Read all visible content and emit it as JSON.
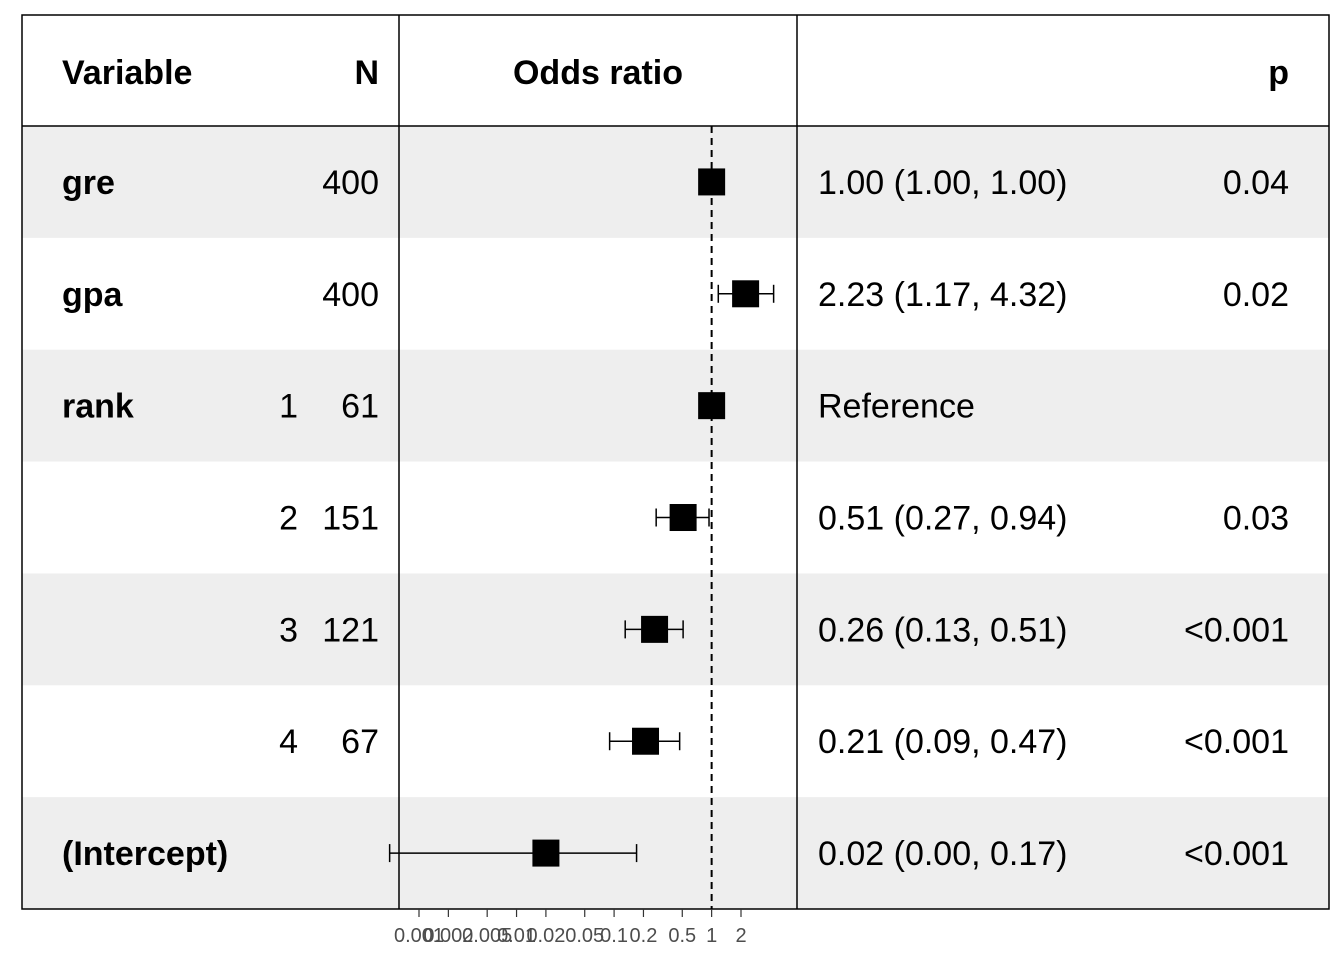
{
  "chart_data": {
    "type": "forest",
    "title": "",
    "headers": {
      "variable": "Variable",
      "n": "N",
      "estimate": "Odds ratio",
      "ci": "",
      "p": "p"
    },
    "x_scale": "log",
    "reference_line": 1,
    "x_ticks": [
      0.001,
      0.002,
      0.005,
      0.01,
      0.02,
      0.05,
      0.1,
      0.2,
      0.5,
      1,
      2
    ],
    "x_tick_labels": [
      "0.001",
      "0.002",
      "0.005",
      "0.01",
      "0.02",
      "0.05",
      "0.1",
      "0.2",
      "0.5",
      "1",
      "2"
    ],
    "rows": [
      {
        "variable": "gre",
        "level": "",
        "n": "400",
        "or": 1.0,
        "lower": 1.0,
        "upper": 1.0,
        "ci_text": "1.00 (1.00, 1.00)",
        "p": "0.04",
        "shaded": true
      },
      {
        "variable": "gpa",
        "level": "",
        "n": "400",
        "or": 2.23,
        "lower": 1.17,
        "upper": 4.32,
        "ci_text": "2.23 (1.17, 4.32)",
        "p": "0.02",
        "shaded": false
      },
      {
        "variable": "rank",
        "level": "1",
        "n": "61",
        "or": 1.0,
        "lower": 1.0,
        "upper": 1.0,
        "ci_text": "Reference",
        "p": "",
        "shaded": true
      },
      {
        "variable": "",
        "level": "2",
        "n": "151",
        "or": 0.51,
        "lower": 0.27,
        "upper": 0.94,
        "ci_text": "0.51 (0.27, 0.94)",
        "p": "0.03",
        "shaded": false
      },
      {
        "variable": "",
        "level": "3",
        "n": "121",
        "or": 0.26,
        "lower": 0.13,
        "upper": 0.51,
        "ci_text": "0.26 (0.13, 0.51)",
        "p": "<0.001",
        "shaded": true
      },
      {
        "variable": "",
        "level": "4",
        "n": "67",
        "or": 0.21,
        "lower": 0.09,
        "upper": 0.47,
        "ci_text": "0.21 (0.09, 0.47)",
        "p": "<0.001",
        "shaded": false
      },
      {
        "variable": "(Intercept)",
        "level": "",
        "n": "",
        "or": 0.02,
        "lower": 0.0,
        "upper": 0.17,
        "ci_text": "0.02 (0.00, 0.17)",
        "p": "<0.001",
        "shaded": true
      }
    ],
    "colors": {
      "shade": "#eeeeee",
      "mark": "#000000",
      "tick_text": "#4d4d4d"
    }
  }
}
